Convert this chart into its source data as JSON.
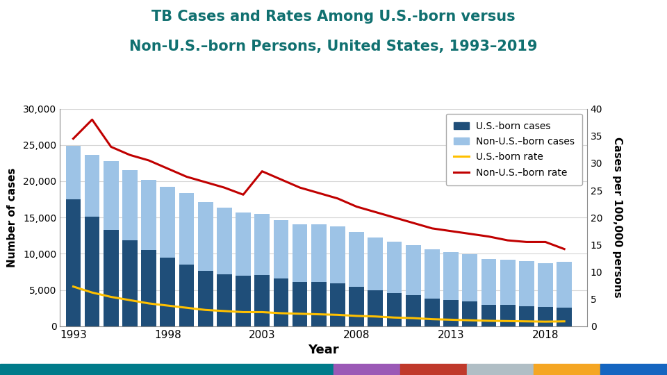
{
  "years": [
    1993,
    1994,
    1995,
    1996,
    1997,
    1998,
    1999,
    2000,
    2001,
    2002,
    2003,
    2004,
    2005,
    2006,
    2007,
    2008,
    2009,
    2010,
    2011,
    2012,
    2013,
    2014,
    2015,
    2016,
    2017,
    2018,
    2019
  ],
  "us_born_cases": [
    17475,
    15075,
    13341,
    11906,
    10539,
    9491,
    8543,
    7643,
    7124,
    6940,
    7076,
    6573,
    6159,
    6068,
    5930,
    5397,
    4946,
    4561,
    4268,
    3848,
    3632,
    3422,
    2975,
    2931,
    2805,
    2670,
    2541
  ],
  "non_us_born_cases": [
    7393,
    8585,
    9437,
    9601,
    9649,
    9698,
    9791,
    9478,
    9225,
    8775,
    8465,
    8041,
    7901,
    8001,
    7831,
    7603,
    7338,
    7116,
    6889,
    6753,
    6609,
    6509,
    6339,
    6208,
    6134,
    6020,
    6364
  ],
  "us_born_rate": [
    7.3,
    6.2,
    5.4,
    4.8,
    4.2,
    3.8,
    3.4,
    3.0,
    2.8,
    2.6,
    2.6,
    2.4,
    2.3,
    2.2,
    2.1,
    1.9,
    1.8,
    1.6,
    1.5,
    1.3,
    1.2,
    1.1,
    1.0,
    0.95,
    0.9,
    0.85,
    0.9
  ],
  "non_us_born_rate": [
    34.5,
    38.0,
    33.0,
    31.5,
    30.5,
    29.0,
    27.5,
    26.5,
    25.5,
    24.2,
    28.5,
    27.0,
    25.5,
    24.5,
    23.5,
    22.0,
    21.0,
    20.0,
    19.0,
    18.0,
    17.5,
    17.0,
    16.5,
    15.8,
    15.5,
    15.5,
    14.2
  ],
  "title_line1": "TB Cases and Rates Among U.S.-born versus",
  "title_line2": "Non-U.S.–born Persons, United States, 1993–2019",
  "ylabel_left": "Number of cases",
  "ylabel_right": "Cases per 100,000 persons",
  "xlabel": "Year",
  "ylim_left": [
    0,
    30000
  ],
  "ylim_right": [
    0,
    40
  ],
  "yticks_left": [
    0,
    5000,
    10000,
    15000,
    20000,
    25000,
    30000
  ],
  "yticks_right": [
    0,
    5,
    10,
    15,
    20,
    25,
    30,
    35,
    40
  ],
  "xticks": [
    1993,
    1998,
    2003,
    2008,
    2013,
    2018
  ],
  "color_us_born_bar": "#1F4E79",
  "color_non_us_born_bar": "#9DC3E6",
  "color_us_born_rate": "#FFC000",
  "color_non_us_born_rate": "#C00000",
  "title_color": "#107070",
  "background_color": "#FFFFFF",
  "legend_labels": [
    "U.S.-born cases",
    "Non-U.S.–born cases",
    "U.S.-born rate",
    "Non-U.S.–born rate"
  ],
  "footer_segments": [
    {
      "color": "#007B8A",
      "weight": 5
    },
    {
      "color": "#9B59B6",
      "weight": 1
    },
    {
      "color": "#C0392B",
      "weight": 1
    },
    {
      "color": "#B0BEC5",
      "weight": 1
    },
    {
      "color": "#F5A623",
      "weight": 1
    },
    {
      "color": "#1565C0",
      "weight": 1
    }
  ]
}
